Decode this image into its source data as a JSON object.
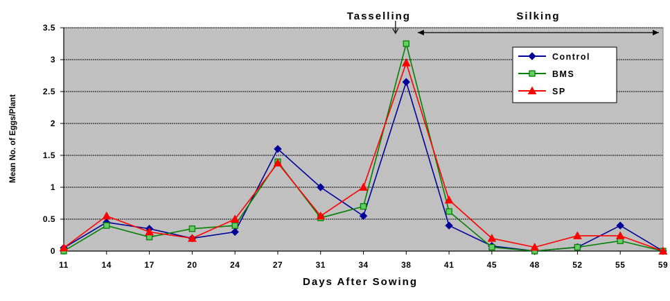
{
  "chart_data": {
    "type": "line",
    "x": [
      "11",
      "14",
      "17",
      "20",
      "24",
      "27",
      "31",
      "34",
      "38",
      "41",
      "45",
      "48",
      "52",
      "55",
      "59"
    ],
    "xlabel": "Days After Sowing",
    "ylabel": "Mean No. of Eggs/Plant",
    "ylim": [
      0,
      3.5
    ],
    "yticks": [
      "0",
      "0.5",
      "1",
      "1.5",
      "2",
      "2.5",
      "3",
      "3.5"
    ],
    "grid": true,
    "legend_position": "top-right",
    "series": [
      {
        "name": "Control",
        "color": "#000099",
        "marker": "diamond",
        "values": [
          0.05,
          0.45,
          0.35,
          0.2,
          0.3,
          1.6,
          1.0,
          0.55,
          2.65,
          0.4,
          0.08,
          0.0,
          0.06,
          0.4,
          0.0
        ]
      },
      {
        "name": "BMS",
        "color": "#008000",
        "marker": "square",
        "values": [
          0.0,
          0.4,
          0.22,
          0.35,
          0.4,
          1.4,
          0.52,
          0.7,
          3.25,
          0.62,
          0.06,
          0.0,
          0.06,
          0.16,
          0.0
        ]
      },
      {
        "name": "SP",
        "color": "#ff0000",
        "marker": "triangle",
        "values": [
          0.05,
          0.55,
          0.3,
          0.2,
          0.5,
          1.38,
          0.55,
          1.0,
          2.95,
          0.8,
          0.2,
          0.06,
          0.24,
          0.24,
          0.0
        ]
      }
    ],
    "annotations": {
      "tasselling": {
        "label": "Tasselling",
        "x": "37"
      },
      "silking": {
        "label": "Silking",
        "x_start": "39",
        "x_end": "59"
      }
    }
  }
}
